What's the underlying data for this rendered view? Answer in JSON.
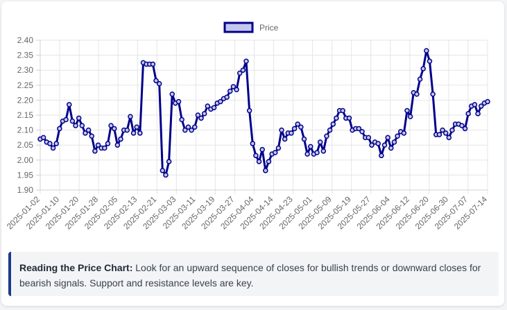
{
  "chart_data": {
    "type": "line",
    "legend": "Price",
    "legend_position": "top-center",
    "ylim": [
      1.9,
      2.4
    ],
    "yticks": [
      "2.40",
      "2.35",
      "2.30",
      "2.25",
      "2.20",
      "2.15",
      "2.10",
      "2.05",
      "2.00",
      "1.95",
      "1.90"
    ],
    "xticks": [
      "2025-01-02",
      "2025-01-10",
      "2025-01-20",
      "2025-01-28",
      "2025-02-05",
      "2025-02-13",
      "2025-02-21",
      "2025-03-03",
      "2025-03-11",
      "2025-03-19",
      "2025-03-27",
      "2025-04-04",
      "2025-04-14",
      "2025-04-23",
      "2025-05-01",
      "2025-05-09",
      "2025-05-19",
      "2025-05-27",
      "2025-06-04",
      "2025-06-12",
      "2025-06-20",
      "2025-06-30",
      "2025-07-07",
      "2025-07-14"
    ],
    "values": [
      2.07,
      2.075,
      2.06,
      2.055,
      2.04,
      2.055,
      2.105,
      2.13,
      2.135,
      2.185,
      2.13,
      2.115,
      2.14,
      2.115,
      2.09,
      2.1,
      2.08,
      2.03,
      2.05,
      2.04,
      2.04,
      2.055,
      2.115,
      2.105,
      2.05,
      2.07,
      2.1,
      2.1,
      2.145,
      2.09,
      2.11,
      2.09,
      2.325,
      2.32,
      2.32,
      2.32,
      2.265,
      2.255,
      1.965,
      1.95,
      1.995,
      2.22,
      2.19,
      2.195,
      2.135,
      2.1,
      2.11,
      2.1,
      2.11,
      2.15,
      2.14,
      2.155,
      2.18,
      2.17,
      2.175,
      2.19,
      2.195,
      2.205,
      2.21,
      2.23,
      2.245,
      2.235,
      2.29,
      2.3,
      2.33,
      2.165,
      2.055,
      2.015,
      1.995,
      2.035,
      1.965,
      1.995,
      2.02,
      2.025,
      2.04,
      2.1,
      2.07,
      2.09,
      2.09,
      2.105,
      2.12,
      2.11,
      2.07,
      2.02,
      2.045,
      2.02,
      2.025,
      2.06,
      2.03,
      2.08,
      2.1,
      2.12,
      2.14,
      2.165,
      2.165,
      2.14,
      2.14,
      2.1,
      2.105,
      2.105,
      2.095,
      2.075,
      2.075,
      2.05,
      2.06,
      2.055,
      2.015,
      2.05,
      2.075,
      2.04,
      2.06,
      2.08,
      2.095,
      2.09,
      2.165,
      2.145,
      2.225,
      2.22,
      2.27,
      2.305,
      2.365,
      2.33,
      2.22,
      2.085,
      2.085,
      2.1,
      2.09,
      2.075,
      2.1,
      2.12,
      2.12,
      2.115,
      2.105,
      2.155,
      2.18,
      2.185,
      2.155,
      2.18,
      2.19,
      2.195
    ],
    "line_color": "#00008b",
    "point_fill": "#c5c8ec"
  },
  "note": {
    "title": "Reading the Price Chart:",
    "text": "Look for an upward sequence of closes for bullish trends or downward closes for bearish signals. Support and resistance levels are key."
  }
}
